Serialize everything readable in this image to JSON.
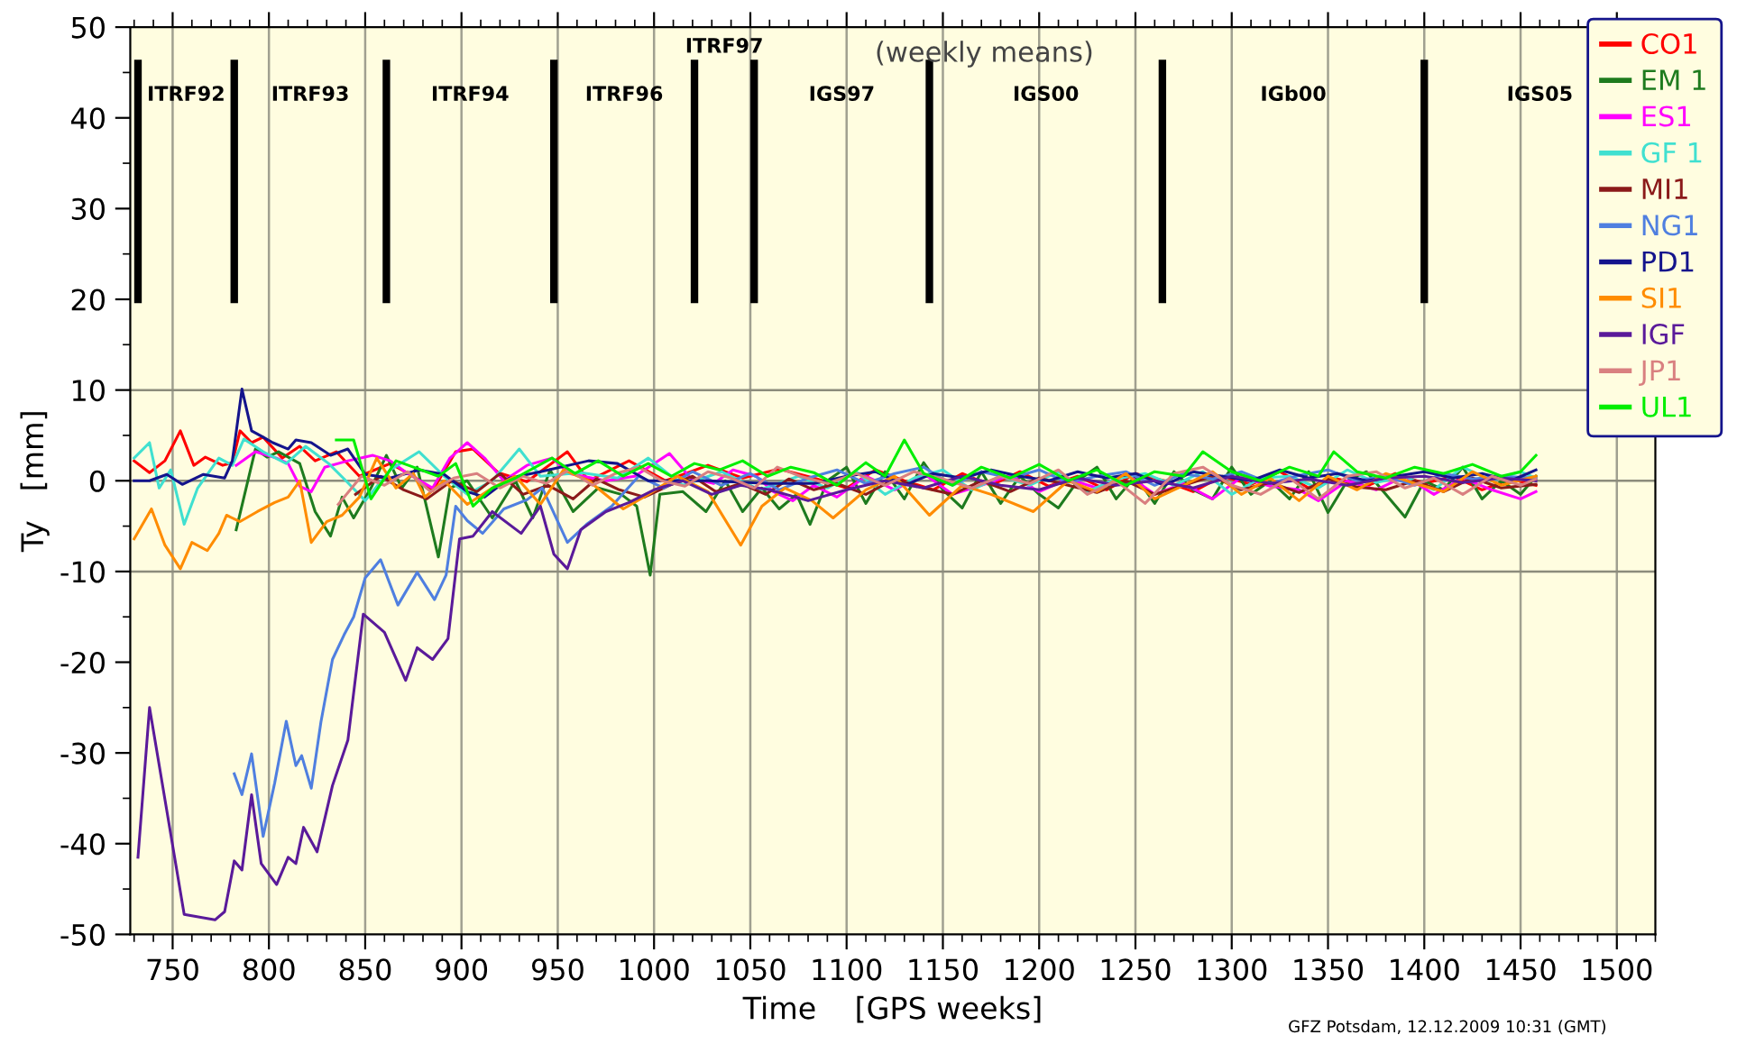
{
  "chart_data": {
    "type": "line",
    "subtitle": "(weekly means)",
    "xlabel": "Time    [GPS weeks]",
    "ylabel": "Ty   [mm]",
    "xlim": [
      728,
      1520
    ],
    "ylim": [
      -50,
      50
    ],
    "xticks": [
      750,
      800,
      850,
      900,
      950,
      1000,
      1050,
      1100,
      1150,
      1200,
      1250,
      1300,
      1350,
      1400,
      1450,
      1500
    ],
    "yticks": [
      -50,
      -40,
      -30,
      -20,
      -10,
      0,
      10,
      20,
      30,
      40,
      50
    ],
    "grid": "x",
    "legend": "top right",
    "line_style": "solid",
    "ref_lines": [
      {
        "axis": "y",
        "value": 10,
        "color": "#8c8c7c"
      },
      {
        "axis": "y",
        "value": 0,
        "color": "#8c8c7c"
      },
      {
        "axis": "y",
        "value": -10,
        "color": "#8c8c7c"
      },
      {
        "axis": "x",
        "value": 732,
        "color": "#000000"
      },
      {
        "axis": "x",
        "value": 782,
        "color": "#000000"
      },
      {
        "axis": "x",
        "value": 861,
        "color": "#000000"
      },
      {
        "axis": "x",
        "value": 948,
        "color": "#000000"
      },
      {
        "axis": "x",
        "value": 1021,
        "color": "#000000"
      },
      {
        "axis": "x",
        "value": 1052,
        "color": "#000000"
      },
      {
        "axis": "x",
        "value": 1143,
        "color": "#000000"
      },
      {
        "axis": "x",
        "value": 1264,
        "color": "#000000"
      },
      {
        "axis": "x",
        "value": 1400,
        "color": "#000000"
      }
    ],
    "annotations": [
      "ITRF92",
      "ITRF93",
      "ITRF94",
      "ITRF96",
      "ITRF97",
      "IGS97",
      "IGS00",
      "IGb00",
      "IGS05",
      "GFZ Potsdam, 12.12.2009 10:31 (GMT)"
    ],
    "series": [
      {
        "name": "CO1",
        "color": "#ff0000",
        "x": [
          730,
          738,
          746,
          754,
          761,
          767,
          776,
          781,
          785,
          791,
          797,
          807,
          816,
          824,
          835,
          847,
          863,
          875,
          885,
          897,
          906,
          919,
          934,
          955,
          966,
          987,
          1006,
          1028,
          1046,
          1065,
          1083,
          1100,
          1115,
          1130,
          1145,
          1160,
          1175,
          1190,
          1205,
          1220,
          1235,
          1250,
          1265,
          1280,
          1295,
          1310,
          1325,
          1340,
          1355,
          1370,
          1385,
          1400,
          1415,
          1430,
          1445,
          1458
        ],
        "values": [
          2.2,
          0.9,
          2.2,
          5.5,
          1.7,
          2.6,
          1.7,
          2.0,
          5.5,
          4.2,
          4.8,
          2.5,
          3.8,
          2.2,
          3.2,
          0.5,
          1.9,
          0.5,
          -1.1,
          3.2,
          3.5,
          0.9,
          -0.1,
          3.2,
          0.0,
          2.2,
          0.0,
          1.7,
          0.3,
          1.3,
          0.3,
          -0.8,
          1.2,
          0.0,
          -1.0,
          0.8,
          -0.5,
          1.0,
          -0.6,
          0.5,
          -1.0,
          0.8,
          0.0,
          -1.2,
          0.5,
          -0.4,
          1.0,
          -0.8,
          0.2,
          -0.6,
          0.8,
          -0.3,
          0.5,
          -1.0,
          0.2,
          -0.5
        ]
      },
      {
        "name": "EM 1",
        "color": "#1e7b1e",
        "x": [
          783,
          793,
          799,
          805,
          816,
          824,
          832,
          838,
          844,
          853,
          861,
          869,
          877,
          888,
          894,
          903,
          916,
          928,
          937,
          946,
          958,
          971,
          983,
          991,
          998,
          1003,
          1015,
          1027,
          1037,
          1046,
          1056,
          1065,
          1074,
          1081,
          1090,
          1100,
          1110,
          1120,
          1130,
          1140,
          1150,
          1160,
          1170,
          1180,
          1190,
          1200,
          1210,
          1220,
          1230,
          1240,
          1250,
          1260,
          1270,
          1280,
          1290,
          1300,
          1310,
          1320,
          1330,
          1340,
          1350,
          1360,
          1370,
          1380,
          1390,
          1400,
          1410,
          1420,
          1430,
          1440,
          1450,
          1458
        ],
        "values": [
          -5.4,
          3.5,
          2.6,
          3.2,
          1.9,
          -3.4,
          -6.1,
          -1.8,
          -4.1,
          -0.8,
          2.8,
          -0.8,
          1.5,
          -8.4,
          -0.8,
          0.0,
          -4.1,
          0.0,
          -4.1,
          1.2,
          -3.4,
          -0.8,
          -1.5,
          -2.8,
          -10.4,
          -1.5,
          -1.2,
          -3.4,
          0.0,
          -3.4,
          -0.8,
          -3.1,
          -1.5,
          -4.8,
          0.0,
          1.5,
          -2.5,
          1.0,
          -2.0,
          2.0,
          -1.0,
          -3.0,
          1.0,
          -2.5,
          0.5,
          -1.5,
          -3.0,
          0.0,
          1.5,
          -2.0,
          0.5,
          -2.5,
          1.0,
          -1.0,
          -2.0,
          1.5,
          -1.5,
          0.0,
          -2.0,
          1.0,
          -3.5,
          0.0,
          1.0,
          -1.5,
          -4.0,
          0.0,
          -1.0,
          1.5,
          -2.0,
          0.0,
          -1.5,
          0.5
        ]
      },
      {
        "name": "ES1",
        "color": "#ff00ff",
        "x": [
          783,
          793,
          804,
          810,
          816,
          822,
          829,
          841,
          854,
          863,
          872,
          885,
          894,
          903,
          912,
          922,
          934,
          947,
          956,
          975,
          990,
          1008,
          1019,
          1031,
          1041,
          1053,
          1062,
          1072,
          1083,
          1095,
          1110,
          1125,
          1140,
          1155,
          1170,
          1185,
          1200,
          1215,
          1230,
          1245,
          1260,
          1275,
          1290,
          1305,
          1320,
          1335,
          1345,
          1360,
          1375,
          1390,
          1405,
          1420,
          1435,
          1450,
          1458
        ],
        "values": [
          1.7,
          3.2,
          2.5,
          1.9,
          -0.6,
          -1.2,
          1.5,
          2.2,
          2.8,
          2.2,
          0.8,
          -0.8,
          2.5,
          4.2,
          2.5,
          0.0,
          1.7,
          2.5,
          0.8,
          0.0,
          0.5,
          3.0,
          0.3,
          -0.3,
          1.2,
          0.5,
          -1.2,
          -2.2,
          -0.5,
          -1.8,
          0.5,
          -1.0,
          0.8,
          -1.5,
          -0.5,
          0.6,
          -1.2,
          0.2,
          -0.8,
          0.8,
          -1.5,
          -0.3,
          -2.0,
          0.4,
          -0.6,
          -1.0,
          -2.2,
          0.0,
          -1.0,
          0.5,
          -1.5,
          0.3,
          -1.0,
          -2.0,
          -1.2
        ]
      },
      {
        "name": "GF 1",
        "color": "#40e0d0",
        "x": [
          730,
          738,
          743,
          749,
          756,
          763,
          774,
          781,
          787,
          797,
          809,
          819,
          831,
          840,
          850,
          863,
          878,
          891,
          903,
          916,
          930,
          941,
          962,
          981,
          997,
          1015,
          1035,
          1055,
          1075,
          1090,
          1105,
          1120,
          1135,
          1150,
          1165,
          1180,
          1195,
          1210,
          1225,
          1240,
          1255,
          1270,
          1285,
          1300,
          1315,
          1330,
          1345,
          1360,
          1375,
          1390,
          1405,
          1420,
          1435,
          1450,
          1458
        ],
        "values": [
          2.5,
          4.2,
          -0.8,
          1.2,
          -4.8,
          -0.8,
          2.5,
          1.7,
          4.6,
          3.2,
          1.9,
          3.8,
          1.9,
          0.0,
          -2.2,
          1.2,
          3.2,
          0.5,
          -1.5,
          0.0,
          3.5,
          0.5,
          0.9,
          0.3,
          2.5,
          -0.5,
          1.0,
          -1.0,
          0.5,
          -0.8,
          1.0,
          -1.5,
          0.3,
          1.2,
          -1.0,
          0.5,
          -0.5,
          1.0,
          -1.2,
          0.2,
          0.8,
          -0.5,
          1.0,
          -1.5,
          0.3,
          0.5,
          -0.8,
          1.2,
          -0.2,
          0.5,
          -1.0,
          1.5,
          0.0,
          1.0,
          0.3
        ]
      },
      {
        "name": "MI1",
        "color": "#8b1a1a",
        "x": [
          845,
          858,
          870,
          882,
          895,
          908,
          920,
          932,
          945,
          958,
          970,
          982,
          995,
          1008,
          1020,
          1032,
          1045,
          1058,
          1070,
          1083,
          1095,
          1110,
          1125,
          1140,
          1155,
          1170,
          1185,
          1200,
          1215,
          1230,
          1245,
          1260,
          1275,
          1290,
          1305,
          1320,
          1335,
          1350,
          1365,
          1380,
          1395,
          1410,
          1425,
          1440,
          1458
        ],
        "values": [
          -1.5,
          0.5,
          -1.0,
          -2.0,
          0.0,
          -1.2,
          0.8,
          -1.5,
          -0.5,
          -2.0,
          0.2,
          -1.0,
          -1.8,
          -0.5,
          0.5,
          -1.2,
          -0.3,
          -1.5,
          0.2,
          -1.0,
          -0.3,
          -1.5,
          0.2,
          -0.8,
          -1.5,
          0.0,
          -1.2,
          0.3,
          -0.5,
          -1.3,
          0.0,
          -1.5,
          -0.5,
          0.5,
          -1.0,
          -0.2,
          -1.3,
          0.2,
          -0.7,
          -1.0,
          0.0,
          -1.2,
          0.3,
          -0.8,
          -0.4
        ]
      },
      {
        "name": "NG1",
        "color": "#4f7fe0",
        "x": [
          782,
          786,
          791,
          797,
          803,
          809,
          814,
          817,
          822,
          827,
          833,
          839,
          844,
          850,
          858,
          867,
          877,
          886,
          892,
          897,
          903,
          911,
          922,
          934,
          942,
          955,
          965,
          978,
          992,
          1005,
          1020,
          1035,
          1050,
          1065,
          1080,
          1095,
          1110,
          1125,
          1140,
          1155,
          1170,
          1185,
          1200,
          1215,
          1230,
          1245,
          1260,
          1275,
          1290,
          1305,
          1320,
          1335,
          1350,
          1365,
          1380,
          1395,
          1410,
          1425,
          1440,
          1458
        ],
        "values": [
          -32.3,
          -34.6,
          -30.1,
          -39.2,
          -33.3,
          -26.5,
          -31.4,
          -30.3,
          -33.9,
          -26.6,
          -19.7,
          -17.0,
          -15.0,
          -10.7,
          -8.7,
          -13.7,
          -10.1,
          -13.1,
          -10.4,
          -2.8,
          -4.4,
          -5.8,
          -3.1,
          -2.1,
          -0.8,
          -6.8,
          -4.8,
          -2.8,
          0.5,
          -0.8,
          1.0,
          -0.5,
          0.8,
          -1.0,
          0.3,
          1.2,
          -0.3,
          0.8,
          1.5,
          -0.5,
          1.0,
          0.3,
          1.2,
          -0.2,
          0.5,
          1.0,
          -0.5,
          0.8,
          0.2,
          1.0,
          -0.3,
          0.6,
          1.2,
          0.0,
          0.5,
          -0.5,
          0.8,
          0.2,
          0.5,
          0.3
        ]
      },
      {
        "name": "PD1",
        "color": "#14148c",
        "x": [
          730,
          738,
          747,
          755,
          766,
          777,
          781,
          786,
          791,
          797,
          802,
          810,
          814,
          822,
          832,
          841,
          850,
          863,
          878,
          891,
          903,
          912,
          925,
          941,
          966,
          981,
          997,
          1028,
          1059,
          1083,
          1100,
          1115,
          1130,
          1145,
          1160,
          1175,
          1190,
          1205,
          1220,
          1235,
          1250,
          1265,
          1280,
          1295,
          1310,
          1325,
          1340,
          1355,
          1370,
          1385,
          1400,
          1415,
          1430,
          1445,
          1458
        ],
        "values": [
          0.0,
          0.0,
          0.7,
          -0.4,
          0.7,
          0.3,
          2.2,
          10.1,
          5.5,
          4.8,
          4.2,
          3.5,
          4.5,
          4.2,
          2.8,
          3.5,
          0.7,
          0.3,
          1.2,
          0.7,
          -1.2,
          -1.8,
          0.3,
          1.0,
          2.2,
          1.9,
          0.0,
          0.0,
          -0.3,
          -0.3,
          0.5,
          1.0,
          -0.5,
          0.8,
          0.3,
          1.2,
          0.5,
          0.0,
          1.0,
          0.3,
          0.8,
          -0.5,
          1.0,
          0.5,
          0.0,
          1.2,
          0.3,
          0.8,
          0.0,
          0.5,
          1.0,
          0.3,
          0.8,
          0.0,
          1.2
        ]
      },
      {
        "name": "SI1",
        "color": "#ff8c00",
        "x": [
          730,
          739,
          746,
          754,
          760,
          768,
          774,
          778,
          785,
          794,
          803,
          810,
          816,
          822,
          830,
          838,
          847,
          856,
          866,
          875,
          881,
          891,
          903,
          916,
          928,
          941,
          953,
          966,
          984,
          997,
          1012,
          1028,
          1045,
          1056,
          1068,
          1082,
          1093,
          1110,
          1125,
          1143,
          1160,
          1175,
          1197,
          1215,
          1230,
          1245,
          1260,
          1275,
          1290,
          1305,
          1320,
          1335,
          1350,
          1365,
          1380,
          1395,
          1410,
          1425,
          1440,
          1458
        ],
        "values": [
          -6.4,
          -3.1,
          -7.1,
          -9.7,
          -6.8,
          -7.7,
          -5.8,
          -3.8,
          -4.5,
          -3.4,
          -2.4,
          -1.8,
          0.0,
          -6.8,
          -4.5,
          -3.8,
          -1.8,
          2.5,
          -0.8,
          0.8,
          -1.8,
          0.0,
          -2.6,
          -0.8,
          0.5,
          -2.6,
          1.2,
          0.0,
          -3.1,
          -1.5,
          0.5,
          -1.2,
          -7.1,
          -2.8,
          -0.8,
          -2.2,
          -4.1,
          -1.0,
          0.5,
          -3.8,
          -0.5,
          -1.5,
          -3.4,
          0.0,
          -1.2,
          0.8,
          -2.0,
          -0.5,
          1.0,
          -1.5,
          0.3,
          -2.2,
          0.5,
          -1.0,
          0.8,
          -0.3,
          -1.2,
          1.0,
          -0.5,
          0.5
        ]
      },
      {
        "name": "IGF",
        "color": "#5a1a9a",
        "x": [
          732,
          738,
          756,
          772,
          777,
          782,
          786,
          791,
          796,
          804,
          810,
          814,
          818,
          825,
          833,
          841,
          849,
          860,
          871,
          877,
          885,
          893,
          899,
          906,
          916,
          931,
          941,
          948,
          955,
          962,
          975,
          987,
          1000,
          1015,
          1030,
          1045,
          1060,
          1080,
          1100,
          1120,
          1140,
          1160,
          1180,
          1200,
          1220,
          1240,
          1260,
          1280,
          1300,
          1320,
          1340,
          1360,
          1380,
          1400,
          1420,
          1440,
          1458
        ],
        "values": [
          -41.5,
          -25.0,
          -47.8,
          -48.4,
          -47.5,
          -41.9,
          -42.9,
          -34.6,
          -42.2,
          -44.5,
          -41.5,
          -42.2,
          -38.2,
          -40.9,
          -33.6,
          -28.6,
          -14.7,
          -16.7,
          -22.0,
          -18.4,
          -19.7,
          -17.4,
          -6.4,
          -6.1,
          -3.4,
          -5.8,
          -2.8,
          -8.1,
          -9.7,
          -5.4,
          -3.4,
          -2.4,
          -1.0,
          0.0,
          -1.5,
          -0.5,
          -1.0,
          -2.2,
          -1.0,
          0.0,
          -0.8,
          0.5,
          -0.5,
          -1.0,
          0.3,
          -0.5,
          0.0,
          -0.8,
          0.5,
          -0.3,
          0.2,
          -0.5,
          0.3,
          0.5,
          -0.2,
          0.3,
          0.0
        ]
      },
      {
        "name": "JP1",
        "color": "#d98080",
        "x": [
          836,
          848,
          860,
          872,
          884,
          896,
          908,
          920,
          932,
          944,
          956,
          968,
          980,
          992,
          1004,
          1016,
          1028,
          1040,
          1052,
          1064,
          1076,
          1090,
          1105,
          1120,
          1135,
          1150,
          1165,
          1180,
          1195,
          1210,
          1225,
          1240,
          1255,
          1270,
          1285,
          1300,
          1315,
          1330,
          1345,
          1360,
          1375,
          1390,
          1405,
          1420,
          1435,
          1450,
          1458
        ],
        "values": [
          -2.6,
          0.5,
          -0.5,
          1.0,
          -1.2,
          0.3,
          0.8,
          -0.8,
          0.5,
          -0.3,
          1.2,
          -0.5,
          0.8,
          1.5,
          0.0,
          -0.6,
          1.0,
          0.3,
          -0.8,
          1.5,
          0.5,
          -0.3,
          0.8,
          -0.5,
          1.0,
          0.2,
          -0.8,
          0.5,
          -0.3,
          1.2,
          -1.5,
          0.0,
          -2.5,
          0.8,
          1.5,
          -0.5,
          -1.5,
          0.3,
          -2.0,
          0.5,
          1.0,
          -0.8,
          0.3,
          -1.5,
          0.5,
          -0.5,
          0.2
        ]
      },
      {
        "name": "UL1",
        "color": "#00ee00",
        "x": [
          835,
          844,
          853,
          866,
          875,
          888,
          897,
          906,
          916,
          928,
          947,
          959,
          971,
          984,
          997,
          1009,
          1021,
          1034,
          1046,
          1059,
          1071,
          1083,
          1095,
          1110,
          1120,
          1130,
          1140,
          1155,
          1170,
          1185,
          1200,
          1215,
          1230,
          1245,
          1260,
          1275,
          1285,
          1300,
          1315,
          1330,
          1345,
          1353,
          1365,
          1380,
          1395,
          1410,
          1425,
          1440,
          1450,
          1458
        ],
        "values": [
          4.5,
          4.5,
          -2.0,
          2.2,
          1.5,
          0.5,
          1.9,
          -2.8,
          -0.8,
          0.3,
          2.5,
          0.8,
          2.2,
          0.5,
          1.9,
          0.5,
          1.9,
          1.2,
          2.2,
          0.5,
          1.5,
          0.9,
          -0.5,
          2.0,
          0.5,
          4.5,
          0.8,
          -0.5,
          1.5,
          0.3,
          1.8,
          0.0,
          1.2,
          -0.5,
          1.0,
          0.5,
          3.2,
          1.0,
          0.0,
          1.5,
          0.5,
          3.2,
          1.0,
          0.3,
          1.5,
          0.8,
          1.8,
          0.5,
          1.0,
          2.8
        ]
      }
    ]
  }
}
